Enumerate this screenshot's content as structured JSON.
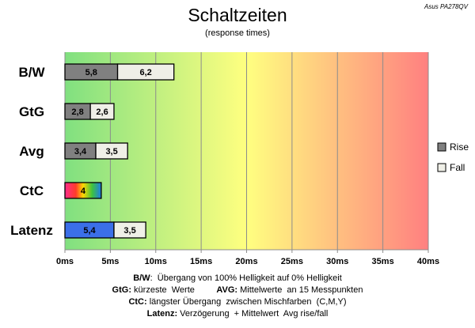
{
  "title": "Schaltzeiten",
  "subtitle": "(response times)",
  "monitor_label": "Asus PA278QV",
  "chart_data": {
    "type": "bar",
    "orientation": "horizontal",
    "stacked": true,
    "categories": [
      "B/W",
      "GtG",
      "Avg",
      "CtC",
      "Latenz"
    ],
    "series": [
      {
        "name": "Rise",
        "values": [
          5.8,
          2.8,
          3.4,
          null,
          5.4
        ],
        "labels": [
          "5,8",
          "2,8",
          "3,4",
          null,
          "5,4"
        ],
        "color": "#808080"
      },
      {
        "name": "Fall",
        "values": [
          6.2,
          2.6,
          3.5,
          null,
          3.5
        ],
        "labels": [
          "6,2",
          "2,6",
          "3,5",
          null,
          "3,5"
        ],
        "color": "#efefe7"
      },
      {
        "name": "",
        "values": [
          null,
          null,
          null,
          4,
          null
        ],
        "labels": [
          null,
          null,
          null,
          "4",
          null
        ],
        "color": "rainbow"
      }
    ],
    "latency_rise_color": "#3b6fe8",
    "xlim": [
      0,
      40
    ],
    "xticks": [
      0,
      5,
      10,
      15,
      20,
      25,
      30,
      35,
      40
    ],
    "xtick_labels": [
      "0ms",
      "5ms",
      "10ms",
      "15ms",
      "20ms",
      "25ms",
      "30ms",
      "35ms",
      "40ms"
    ],
    "background_gradient": [
      "#80e080",
      "#ffff80",
      "#ff8080"
    ],
    "grid": true,
    "legend": {
      "position": "right",
      "entries": [
        "Rise",
        "Fall"
      ]
    }
  },
  "footnotes": [
    {
      "key": "B/W",
      "text": ":  Übergang von 100% Helligkeit auf 0% Helligkeit"
    },
    {
      "key": "GtG:",
      "text": " kürzeste  Werte         ",
      "key2": "AVG:",
      "text2": " Mittelwerte  an 15 Messpunkten"
    },
    {
      "key": "CtC:",
      "text": " längster Übergang  zwischen Mischfarben  (C,M,Y)"
    },
    {
      "key": "Latenz:",
      "text": " Verzögerung  + Mittelwert  Avg rise/fall"
    }
  ]
}
